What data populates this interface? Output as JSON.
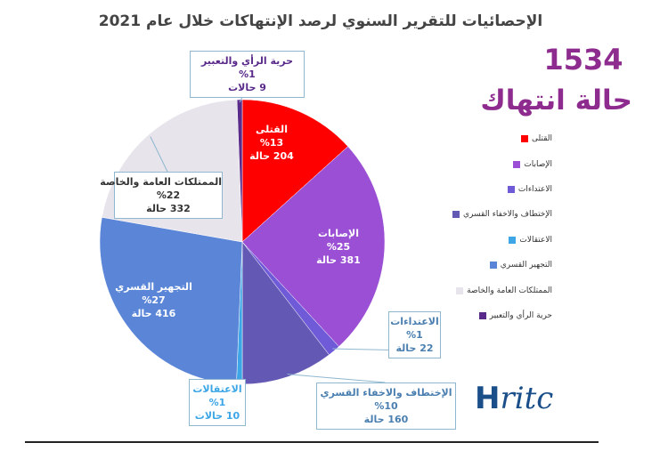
{
  "chart_data": {
    "type": "pie",
    "title": "الإحصائيات للتقرير السنوي لرصد الإنتهاكات خلال عام 2021",
    "total": "1534",
    "total_label": "حالة انتهاك",
    "legend_position": "right",
    "slices": [
      {
        "name": "القتلى",
        "value": 204,
        "percent": "%13",
        "count": "204 حالة",
        "color": "#ff0000"
      },
      {
        "name": "الإصابات",
        "value": 381,
        "percent": "%25",
        "count": "381 حالة",
        "color": "#9b4fd4"
      },
      {
        "name": "الاعتداءات",
        "value": 22,
        "percent": "%1",
        "count": "22 حالة",
        "color": "#6f5ad8"
      },
      {
        "name": "الإختطاف والاخفاء القسري",
        "value": 160,
        "percent": "%10",
        "count": "160 حالة",
        "color": "#6358b4"
      },
      {
        "name": "الاعتقالات",
        "value": 10,
        "percent": "%1",
        "count": "10 حالات",
        "color": "#3ca6e6"
      },
      {
        "name": "التجهير القسري",
        "value": 416,
        "percent": "%27",
        "count": "416 حالة",
        "color": "#5b86d8"
      },
      {
        "name": "الممتلكات العامة والخاصة",
        "value": 332,
        "percent": "%22",
        "count": "332 حالة",
        "color": "#e7e4ec"
      },
      {
        "name": "حرية الرأي والتعبير",
        "value": 9,
        "percent": "%1",
        "count": "9 حالات",
        "color": "#5a2a8a"
      }
    ]
  },
  "logo": {
    "text": "Hritc"
  }
}
